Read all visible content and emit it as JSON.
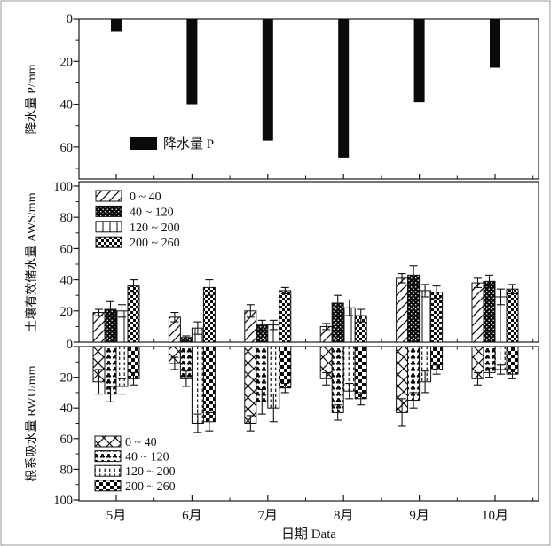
{
  "figure": {
    "xaxis_title": "日期 Data",
    "categories": [
      "5月",
      "6月",
      "7月",
      "8月",
      "9月",
      "10月"
    ],
    "colors": {
      "bar_fill": "#0a0a0a",
      "axis": "#1a1a1a",
      "background": "#ffffff",
      "frame": "#999999"
    }
  },
  "chart_data": [
    {
      "type": "bar",
      "panel": "precipitation",
      "ylabel": "降水量 P/mm",
      "orientation": "down",
      "ylim": [
        0,
        75
      ],
      "yticks": [
        0,
        20,
        40,
        60
      ],
      "grid": false,
      "categories": [
        "5月",
        "6月",
        "7月",
        "8月",
        "9月",
        "10月"
      ],
      "values": [
        6,
        40,
        57,
        65,
        39,
        23
      ],
      "legend": [
        {
          "label": "降水量 P",
          "pattern": "solid-black"
        }
      ],
      "legend_position": "bottom-left"
    },
    {
      "type": "bar",
      "panel": "soil-available-water",
      "ylabel": "土壤有效储水量 AWS/mm",
      "orientation": "up",
      "ylim": [
        0,
        100
      ],
      "yticks": [
        0,
        20,
        40,
        60,
        80,
        100
      ],
      "grid": false,
      "categories": [
        "5月",
        "6月",
        "7月",
        "8月",
        "9月",
        "10月"
      ],
      "series": [
        {
          "name": "0 ~ 40",
          "pattern": "diagonal",
          "values": [
            19,
            16,
            20,
            10,
            41,
            38
          ],
          "errors": [
            2,
            3,
            4,
            2,
            3,
            3
          ]
        },
        {
          "name": "40 ~ 120",
          "pattern": "black-speckle",
          "values": [
            21,
            3,
            11,
            25,
            43,
            39
          ],
          "errors": [
            5,
            1,
            3,
            5,
            6,
            4
          ]
        },
        {
          "name": "120 ~ 200",
          "pattern": "vertical-line",
          "values": [
            20,
            9,
            11,
            22,
            33,
            29
          ],
          "errors": [
            4,
            4,
            3,
            5,
            4,
            5
          ]
        },
        {
          "name": "200 ~ 260",
          "pattern": "checker-small",
          "values": [
            36,
            35,
            33,
            17,
            32,
            34
          ],
          "errors": [
            4,
            5,
            2,
            4,
            4,
            3
          ]
        }
      ],
      "legend_position": "top-left"
    },
    {
      "type": "bar",
      "panel": "root-water-uptake",
      "ylabel": "根系吸水量 RWU/mm",
      "orientation": "down",
      "ylim": [
        0,
        100
      ],
      "yticks": [
        0,
        20,
        40,
        60,
        80,
        100
      ],
      "grid": false,
      "categories": [
        "5月",
        "6月",
        "7月",
        "8月",
        "9月",
        "10月"
      ],
      "series": [
        {
          "name": "0 ~ 40",
          "pattern": "cross-hatch",
          "values": [
            23,
            11,
            50,
            21,
            43,
            21
          ],
          "errors": [
            8,
            4,
            5,
            4,
            9,
            4
          ]
        },
        {
          "name": "40 ~ 120",
          "pattern": "black-clubs",
          "values": [
            31,
            21,
            36,
            43,
            35,
            17
          ],
          "errors": [
            5,
            5,
            8,
            5,
            5,
            3
          ]
        },
        {
          "name": "120 ~ 200",
          "pattern": "vertical-dash",
          "values": [
            26,
            50,
            40,
            29,
            23,
            15
          ],
          "errors": [
            5,
            6,
            9,
            5,
            7,
            3
          ]
        },
        {
          "name": "200 ~ 260",
          "pattern": "checker-large",
          "values": [
            21,
            49,
            27,
            34,
            15,
            18
          ],
          "errors": [
            4,
            6,
            3,
            4,
            3,
            3
          ]
        }
      ],
      "legend_position": "bottom-left"
    }
  ]
}
